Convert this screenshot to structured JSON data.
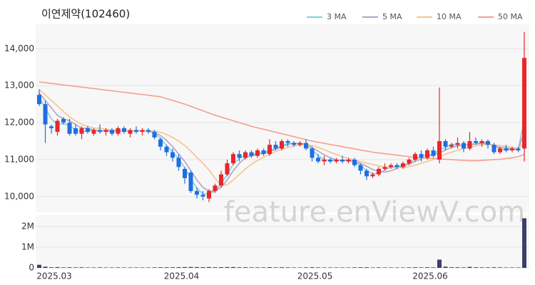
{
  "chart_data": [
    {
      "type": "candlestick",
      "title": "이연제약(102460)",
      "watermark": "feature.enViewV.com",
      "up_color": "#e8262d",
      "down_color": "#1f6fe0",
      "open": [
        12750,
        12500,
        11900,
        11750,
        12100,
        12000,
        11850,
        11700,
        11850,
        11700,
        11800,
        11750,
        11800,
        11700,
        11850,
        11700,
        11800,
        11750,
        11800,
        11750,
        11550,
        11350,
        11200,
        11050,
        10750,
        10650,
        10150,
        10050,
        9950,
        10150,
        10300,
        10600,
        10900,
        11150,
        11050,
        11200,
        11100,
        11250,
        11150,
        11400,
        11300,
        11500,
        11450,
        11400,
        11450,
        11300,
        11050,
        10950,
        11000,
        10950,
        11000,
        10950,
        11000,
        10850,
        10700,
        10550,
        10600,
        10750,
        10800,
        10850,
        10800,
        10900,
        11000,
        11150,
        11050,
        11250,
        11000,
        11500,
        11350,
        11400,
        11450,
        11300,
        11500,
        11450,
        11500,
        11400,
        11200,
        11300,
        11250,
        11300,
        11300
      ],
      "high": [
        12900,
        12600,
        11950,
        12100,
        12150,
        12100,
        11950,
        11900,
        11900,
        11850,
        11950,
        11850,
        11850,
        11900,
        11900,
        11850,
        11900,
        11850,
        11850,
        11800,
        11600,
        11400,
        11300,
        11150,
        10800,
        10700,
        10250,
        10150,
        10200,
        10350,
        10700,
        11000,
        11200,
        11250,
        11250,
        11250,
        11300,
        11300,
        11550,
        11500,
        11550,
        11550,
        11500,
        11500,
        11550,
        11350,
        11150,
        11100,
        11050,
        11050,
        11100,
        11050,
        11050,
        10900,
        10750,
        10650,
        10800,
        10900,
        10900,
        10900,
        10950,
        11050,
        11200,
        11250,
        11300,
        11350,
        12950,
        11550,
        11450,
        11600,
        11500,
        11750,
        11600,
        11550,
        11550,
        11450,
        11350,
        11400,
        11350,
        11350,
        14450
      ],
      "low": [
        12450,
        11450,
        11700,
        11650,
        11950,
        11650,
        11650,
        11550,
        11700,
        11650,
        11700,
        11650,
        11650,
        11650,
        11700,
        11600,
        11700,
        11650,
        11700,
        11550,
        11250,
        11100,
        10950,
        10700,
        10350,
        10100,
        9950,
        9900,
        9850,
        10100,
        10250,
        10550,
        10850,
        10950,
        11000,
        11050,
        11050,
        11100,
        11100,
        11250,
        11250,
        11350,
        11350,
        11350,
        11250,
        10950,
        10900,
        10850,
        10900,
        10900,
        10900,
        10900,
        10800,
        10600,
        10450,
        10500,
        10550,
        10700,
        10750,
        10750,
        10750,
        10850,
        10950,
        10950,
        11000,
        11050,
        10900,
        11250,
        11300,
        11300,
        11200,
        11250,
        11400,
        11350,
        11300,
        11150,
        11150,
        11200,
        11200,
        11200,
        10950
      ],
      "close": [
        12500,
        11950,
        11850,
        12050,
        12000,
        11700,
        11700,
        11850,
        11750,
        11800,
        11750,
        11800,
        11700,
        11850,
        11750,
        11800,
        11750,
        11800,
        11750,
        11600,
        11350,
        11200,
        11050,
        10800,
        10500,
        10150,
        10050,
        10000,
        10150,
        10300,
        10600,
        10900,
        11150,
        11050,
        11200,
        11100,
        11250,
        11150,
        11400,
        11300,
        11500,
        11450,
        11400,
        11450,
        11300,
        11050,
        10950,
        11000,
        10950,
        11000,
        10950,
        11000,
        10850,
        10700,
        10550,
        10600,
        10750,
        10800,
        10850,
        10800,
        10900,
        11000,
        11150,
        11050,
        11250,
        11100,
        11500,
        11350,
        11400,
        11450,
        11300,
        11500,
        11450,
        11500,
        11400,
        11200,
        11300,
        11250,
        11300,
        11250,
        13750
      ],
      "series": [
        {
          "name": "3 MA",
          "color": "#7fd3d8",
          "values": [
            12700,
            12400,
            12100,
            11950,
            11970,
            11920,
            11800,
            11750,
            11770,
            11800,
            11770,
            11780,
            11750,
            11780,
            11770,
            11780,
            11770,
            11780,
            11770,
            11720,
            11570,
            11380,
            11200,
            11020,
            10780,
            10480,
            10230,
            10070,
            10070,
            10150,
            10350,
            10600,
            10880,
            11030,
            11130,
            11120,
            11180,
            11170,
            11270,
            11280,
            11400,
            11420,
            11450,
            11420,
            11380,
            11270,
            11100,
            11000,
            10970,
            10980,
            10980,
            10980,
            10930,
            10850,
            10700,
            10620,
            10630,
            10720,
            10800,
            10820,
            10850,
            10900,
            11020,
            11070,
            11150,
            11130,
            11280,
            11320,
            11420,
            11400,
            11380,
            11420,
            11420,
            11480,
            11450,
            11370,
            11300,
            11250,
            11280,
            11270,
            12100
          ]
        },
        {
          "name": "5 MA",
          "color": "#b3a0cc",
          "values": [
            12800,
            12600,
            12400,
            12200,
            12100,
            12050,
            11950,
            11850,
            11850,
            11800,
            11780,
            11780,
            11770,
            11780,
            11780,
            11770,
            11780,
            11780,
            11770,
            11740,
            11650,
            11520,
            11350,
            11150,
            10950,
            10700,
            10450,
            10250,
            10150,
            10150,
            10250,
            10450,
            10700,
            10900,
            11050,
            11100,
            11150,
            11170,
            11220,
            11280,
            11350,
            11410,
            11440,
            11440,
            11420,
            11330,
            11230,
            11130,
            11050,
            10990,
            10980,
            10980,
            10960,
            10900,
            10820,
            10730,
            10680,
            10660,
            10700,
            10760,
            10830,
            10880,
            10950,
            11020,
            11080,
            11130,
            11180,
            11260,
            11330,
            11370,
            11390,
            11400,
            11420,
            11440,
            11430,
            11370,
            11330,
            11320,
            11290,
            11270,
            11760
          ]
        },
        {
          "name": "10 MA",
          "color": "#f5c48a",
          "values": [
            12900,
            12750,
            12600,
            12450,
            12300,
            12150,
            12050,
            11950,
            11900,
            11850,
            11850,
            11820,
            11800,
            11800,
            11790,
            11780,
            11780,
            11780,
            11780,
            11770,
            11740,
            11680,
            11600,
            11500,
            11380,
            11230,
            11060,
            10900,
            10720,
            10500,
            10300,
            10320,
            10450,
            10600,
            10750,
            10880,
            10980,
            11060,
            11150,
            11220,
            11280,
            11330,
            11370,
            11400,
            11410,
            11380,
            11330,
            11270,
            11200,
            11140,
            11080,
            11030,
            10990,
            10950,
            10910,
            10870,
            10830,
            10800,
            10790,
            10780,
            10790,
            10810,
            10850,
            10900,
            10950,
            11000,
            11060,
            11150,
            11200,
            11250,
            11300,
            11340,
            11370,
            11400,
            11410,
            11400,
            11380,
            11360,
            11330,
            11300,
            11450
          ]
        },
        {
          "name": "50 MA",
          "color": "#f4a08e",
          "values": [
            13100,
            13080,
            13060,
            13040,
            13020,
            13000,
            12980,
            12960,
            12940,
            12920,
            12900,
            12880,
            12860,
            12840,
            12820,
            12800,
            12780,
            12760,
            12740,
            12720,
            12700,
            12650,
            12600,
            12550,
            12500,
            12440,
            12380,
            12320,
            12260,
            12200,
            12150,
            12100,
            12050,
            12000,
            11950,
            11900,
            11860,
            11820,
            11780,
            11740,
            11700,
            11660,
            11620,
            11580,
            11540,
            11500,
            11470,
            11440,
            11410,
            11380,
            11350,
            11320,
            11290,
            11260,
            11230,
            11200,
            11180,
            11160,
            11140,
            11120,
            11100,
            11080,
            11060,
            11050,
            11040,
            11030,
            11020,
            11010,
            11000,
            10990,
            10980,
            10970,
            10970,
            10980,
            10990,
            11000,
            11010,
            11030,
            11050,
            11080,
            11140
          ]
        }
      ],
      "ylim": [
        9575,
        14660
      ],
      "yticks": [
        {
          "value": 10000,
          "label": "10,000"
        },
        {
          "value": 11000,
          "label": "11,000"
        },
        {
          "value": 12000,
          "label": "12,000"
        },
        {
          "value": 13000,
          "label": "13,000"
        },
        {
          "value": 14000,
          "label": "14,000"
        }
      ],
      "grid": true
    },
    {
      "type": "bar",
      "color": "#3c3f6b",
      "categories": [
        null,
        null,
        "2025.03",
        null,
        null,
        null,
        null,
        null,
        null,
        null,
        null,
        null,
        null,
        null,
        null,
        null,
        null,
        null,
        null,
        null,
        null,
        null,
        null,
        "2025.04",
        null,
        null,
        null,
        null,
        null,
        null,
        null,
        null,
        null,
        null,
        null,
        null,
        null,
        null,
        null,
        null,
        null,
        null,
        null,
        null,
        null,
        "2025.05",
        null,
        null,
        null,
        null,
        null,
        null,
        null,
        null,
        null,
        null,
        null,
        null,
        null,
        null,
        null,
        null,
        null,
        null,
        "2025.06",
        null,
        null,
        null,
        null,
        null,
        null,
        null,
        null,
        null,
        null,
        null,
        null,
        null,
        null,
        null,
        null
      ],
      "values": [
        150000,
        60000,
        30000,
        40000,
        25000,
        30000,
        25000,
        30000,
        20000,
        20000,
        25000,
        20000,
        20000,
        25000,
        20000,
        20000,
        20000,
        20000,
        20000,
        25000,
        30000,
        30000,
        30000,
        35000,
        40000,
        45000,
        40000,
        35000,
        40000,
        30000,
        35000,
        40000,
        40000,
        30000,
        30000,
        25000,
        25000,
        25000,
        35000,
        25000,
        30000,
        25000,
        20000,
        20000,
        25000,
        30000,
        25000,
        20000,
        20000,
        20000,
        20000,
        20000,
        25000,
        30000,
        30000,
        20000,
        25000,
        20000,
        20000,
        20000,
        20000,
        25000,
        30000,
        25000,
        30000,
        25000,
        400000,
        60000,
        30000,
        30000,
        25000,
        50000,
        30000,
        25000,
        25000,
        30000,
        25000,
        20000,
        20000,
        20000,
        2400000
      ],
      "ylim": [
        0,
        2550000
      ],
      "yticks": [
        0,
        {
          "value": 1000000,
          "label": "1M"
        },
        {
          "value": 2000000,
          "label": "2M"
        }
      ]
    }
  ]
}
